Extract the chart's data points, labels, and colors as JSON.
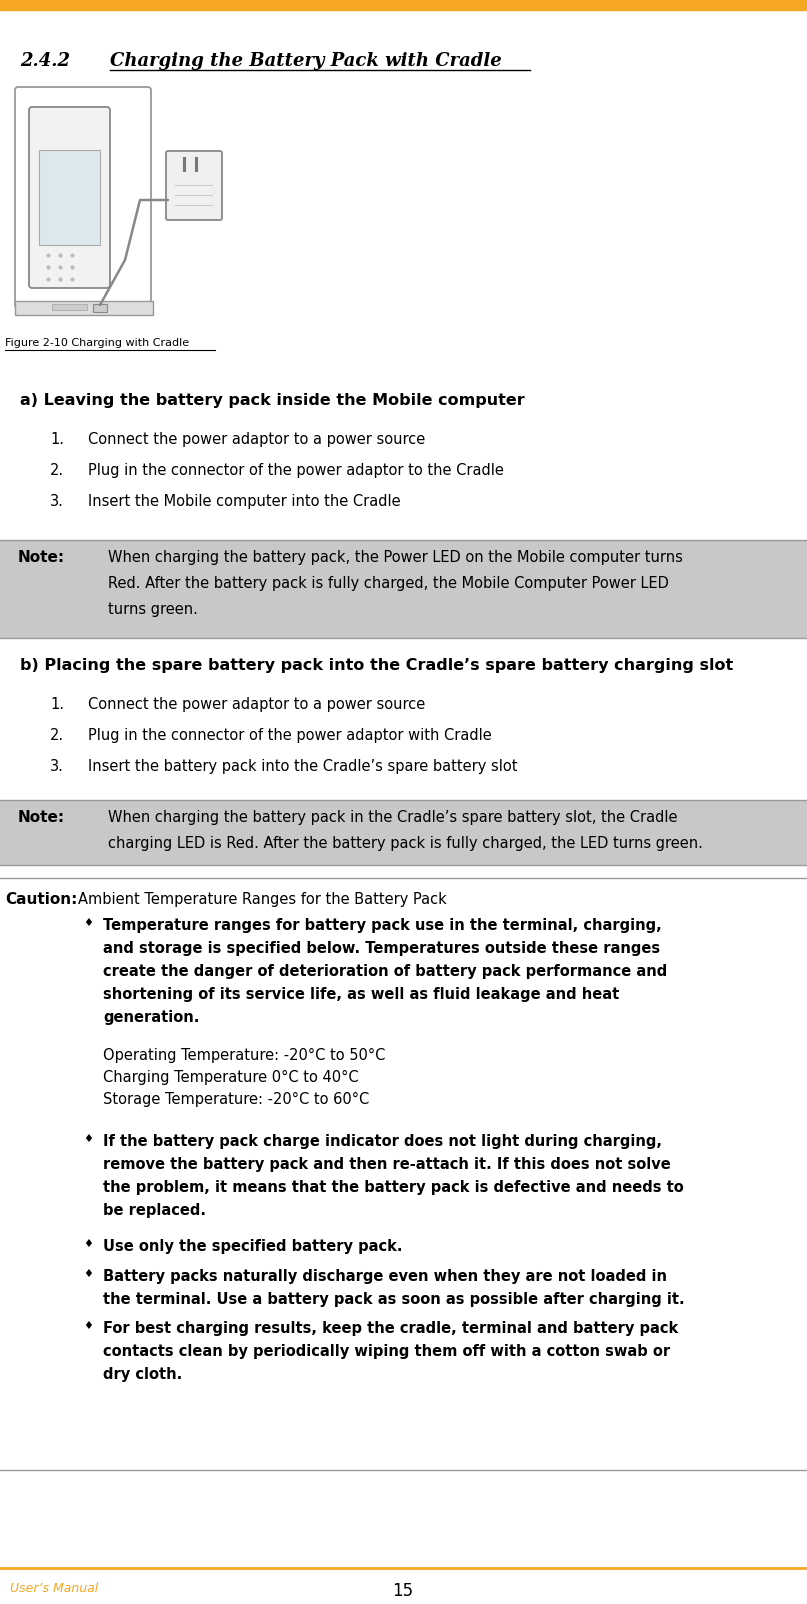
{
  "title_num": "2.4.2",
  "title_text": "Charging the Battery Pack with Cradle",
  "figure_caption": "Figure 2-10 Charging with Cradle",
  "section_a_title": "a) Leaving the battery pack inside the Mobile computer",
  "section_a_items": [
    "Connect the power adaptor to a power source",
    "Plug in the connector of the power adaptor to the Cradle",
    "Insert the Mobile computer into the Cradle"
  ],
  "note1_label": "Note:",
  "note1_lines": [
    "When charging the battery pack, the Power LED on the Mobile computer turns",
    "Red. After the battery pack is fully charged, the Mobile Computer Power LED",
    "turns green."
  ],
  "section_b_title": "b) Placing the spare battery pack into the Cradle’s spare battery charging slot",
  "section_b_items": [
    "Connect the power adaptor to a power source",
    "Plug in the connector of the power adaptor with Cradle",
    "Insert the battery pack into the Cradle’s spare battery slot"
  ],
  "note2_label": "Note:",
  "note2_lines": [
    "When charging the battery pack in the Cradle’s spare battery slot, the Cradle",
    "charging LED is Red. After the battery pack is fully charged, the LED turns green."
  ],
  "caution_label": "Caution:",
  "caution_header": "Ambient Temperature Ranges for the Battery Pack",
  "bullet1_lines": [
    "Temperature ranges for battery pack use in the terminal, charging,",
    "and storage is specified below. Temperatures outside these ranges",
    "create the danger of deterioration of battery pack performance and",
    "shortening of its service life, as well as fluid leakage and heat",
    "generation."
  ],
  "temp_lines": [
    "Operating Temperature: -20°C to 50°C",
    "Charging Temperature 0°C to 40°C",
    "Storage Temperature: -20°C to 60°C"
  ],
  "bullet2_lines": [
    "If the battery pack charge indicator does not light during charging,",
    "remove the battery pack and then re-attach it. If this does not solve",
    "the problem, it means that the battery pack is defective and needs to",
    "be replaced."
  ],
  "bullet3_line": "Use only the specified battery pack.",
  "bullet4_lines": [
    "Battery packs naturally discharge even when they are not loaded in",
    "the terminal. Use a battery pack as soon as possible after charging it."
  ],
  "bullet5_lines": [
    "For best charging results, keep the cradle, terminal and battery pack",
    "contacts clean by periodically wiping them off with a cotton swab or",
    "dry cloth."
  ],
  "footer_left": "User’s Manual",
  "footer_center": "15",
  "top_bar_color": "#F5A623",
  "footer_line_color": "#F5A623",
  "footer_text_color": "#F5A623",
  "note_bg_color": "#C8C8C8",
  "bg_color": "#FFFFFF"
}
